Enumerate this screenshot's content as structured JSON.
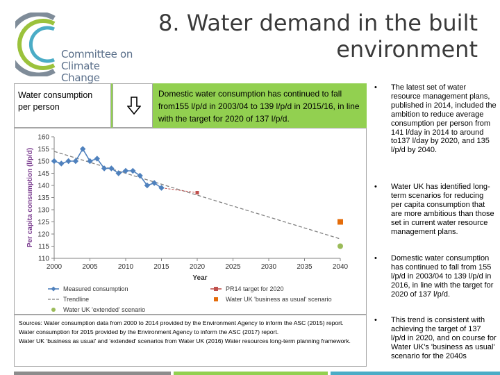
{
  "header": {
    "title": "8. Water demand in the built environment",
    "logo_text": [
      "Committee on",
      "Climate Change"
    ]
  },
  "left_panel": {
    "consumption_label": "Water consumption per person",
    "arrow_icon": "down-arrow-icon",
    "domestic_text": "Domestic water consumption has continued to fall from155 l/p/d in 2003/04 to 139 l/p/d in 2015/16, in line with the target for 2020 of 137 l/p/d."
  },
  "chart_data": {
    "type": "line",
    "ylabel": "Per capita consumption (l/p/d)",
    "xlabel": "Year",
    "xlim": [
      2000,
      2040
    ],
    "ylim": [
      110,
      160
    ],
    "xticks": [
      2000,
      2005,
      2010,
      2015,
      2020,
      2025,
      2030,
      2035,
      2040
    ],
    "yticks": [
      110,
      115,
      120,
      125,
      130,
      135,
      140,
      145,
      150,
      155,
      160
    ],
    "grid": false,
    "legend_position": "bottom",
    "series": [
      {
        "name": "Measured consumption",
        "color": "#4f81bd",
        "x": [
          2000,
          2001,
          2002,
          2003,
          2004,
          2005,
          2006,
          2007,
          2008,
          2009,
          2010,
          2011,
          2012,
          2013,
          2014,
          2015
        ],
        "y": [
          150,
          149,
          150,
          150,
          155,
          150,
          151,
          147,
          147,
          145,
          146,
          146,
          144,
          140,
          141,
          139
        ]
      },
      {
        "name": "Trendline",
        "color": "#808080",
        "x": [
          2000,
          2040
        ],
        "y": [
          154,
          118
        ]
      },
      {
        "name": "PR14 target for 2020",
        "color": "#c0504d",
        "x": [
          2020
        ],
        "y": [
          137
        ]
      },
      {
        "name": "Water UK 'business as usual' scenario",
        "color": "#e46c0a",
        "x": [
          2040
        ],
        "y": [
          125
        ]
      },
      {
        "name": "Water UK 'extended' scenario",
        "color": "#9bbb59",
        "x": [
          2040
        ],
        "y": [
          115
        ]
      }
    ]
  },
  "sources": [
    "Sources: Water consumption data from 2000 to 2014 provided by the Environment Agency to inform the ASC (2015) report.",
    "Water consumption for 2015 provided by the Environment Agency to inform the ASC (2017) report.",
    "Water UK ‘business as usual’ and ‘extended’ scenarios from Water UK (2016) Water resources long-term planning framework."
  ],
  "bullets": [
    "The latest set of water resource management plans, published in 2014, included the ambition to reduce average consumption per person from 141 l/day in 2014 to around to137 l/day by 2020, and 135 l/p/d by 2040.",
    "Water UK has identified long-term scenarios for reducing per capita consumption that are more ambitious than those set in current water resource management plans.",
    "Domestic water consumption has continued to fall from 155 l/p/d in 2003/04 to 139 l/p/d in 2016, in line with the target for 2020 of 137 l/p/d.",
    "This trend is consistent with achieving the target of 137 l/p/d in 2020, and on course for Water UK's 'business as usual' scenario for the 2040s"
  ],
  "bullet_symbol": "•",
  "colors": {
    "green_accent": "#92d050",
    "teal_accent": "#4bacc6",
    "grey_accent": "#8c8c8c",
    "title_text": "#3a3a3a",
    "logo_text": "#5a6f8a"
  }
}
